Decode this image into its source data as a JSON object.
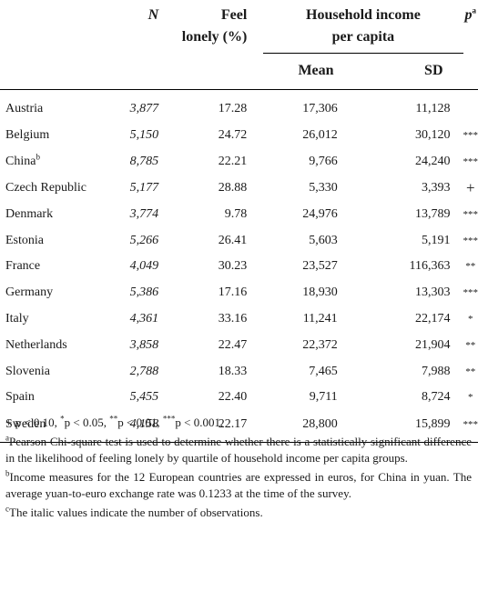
{
  "headers": {
    "n": "N",
    "lonely_line1": "Feel",
    "lonely_line2": "lonely (%)",
    "income_line1": "Household income",
    "income_line2": "per capita",
    "mean": "Mean",
    "sd": "SD",
    "p": "p",
    "p_sup": "a"
  },
  "rows": [
    {
      "country": "Austria",
      "sup": "",
      "n": "3,877",
      "lonely": "17.28",
      "mean": "17,306",
      "sd": "11,128",
      "p": ""
    },
    {
      "country": "Belgium",
      "sup": "",
      "n": "5,150",
      "lonely": "24.72",
      "mean": "26,012",
      "sd": "30,120",
      "p": "***"
    },
    {
      "country": "China",
      "sup": "b",
      "n": "8,785",
      "lonely": "22.21",
      "mean": "9,766",
      "sd": "24,240",
      "p": "***"
    },
    {
      "country": "Czech Republic",
      "sup": "",
      "n": "5,177",
      "lonely": "28.88",
      "mean": "5,330",
      "sd": "3,393",
      "p": "+"
    },
    {
      "country": "Denmark",
      "sup": "",
      "n": "3,774",
      "lonely": "9.78",
      "mean": "24,976",
      "sd": "13,789",
      "p": "***"
    },
    {
      "country": "Estonia",
      "sup": "",
      "n": "5,266",
      "lonely": "26.41",
      "mean": "5,603",
      "sd": "5,191",
      "p": "***"
    },
    {
      "country": "France",
      "sup": "",
      "n": "4,049",
      "lonely": "30.23",
      "mean": "23,527",
      "sd": "116,363",
      "p": "**"
    },
    {
      "country": "Germany",
      "sup": "",
      "n": "5,386",
      "lonely": "17.16",
      "mean": "18,930",
      "sd": "13,303",
      "p": "***"
    },
    {
      "country": "Italy",
      "sup": "",
      "n": "4,361",
      "lonely": "33.16",
      "mean": "11,241",
      "sd": "22,174",
      "p": "*"
    },
    {
      "country": "Netherlands",
      "sup": "",
      "n": "3,858",
      "lonely": "22.47",
      "mean": "22,372",
      "sd": "21,904",
      "p": "**"
    },
    {
      "country": "Slovenia",
      "sup": "",
      "n": "2,788",
      "lonely": "18.33",
      "mean": "7,465",
      "sd": "7,988",
      "p": "**"
    },
    {
      "country": "Spain",
      "sup": "",
      "n": "5,455",
      "lonely": "22.40",
      "mean": "9,711",
      "sd": "8,724",
      "p": "*"
    },
    {
      "country": "Sweden",
      "sup": "",
      "n": "4,158",
      "lonely": "22.17",
      "mean": "28,800",
      "sd": "15,899",
      "p": "***"
    }
  ],
  "notes": {
    "sig_plus": "+ p < 0.10, ",
    "sig_1_sup": "*",
    "sig_1": "p < 0.05, ",
    "sig_2_sup": "**",
    "sig_2": "p < 0.01, ",
    "sig_3_sup": "***",
    "sig_3": "p < 0.001.",
    "note_a_sup": "a",
    "note_a": "Pearson Chi-square test is used to determine whether there is a statistically significant difference in the likelihood of feeling lonely by quartile of household income per capita groups.",
    "note_b_sup": "b",
    "note_b": "Income measures for the 12 European countries are expressed in euros, for China in yuan. The average yuan-to-euro exchange rate was 0.1233 at the time of the survey.",
    "note_c_sup": "c",
    "note_c": "The italic values indicate the number of observations."
  }
}
